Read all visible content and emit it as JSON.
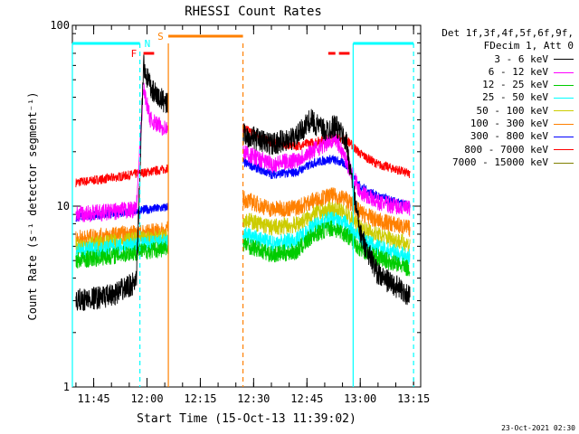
{
  "chart_data": {
    "type": "line",
    "title": "RHESSI Count Rates",
    "xlabel": "Start Time (15-Oct-13 11:39:02)",
    "ylabel": "Count Rate (s⁻¹ detector segment⁻¹)",
    "yscale": "log",
    "ylim": [
      1,
      100
    ],
    "y_ticks": [
      "1",
      "10",
      "100"
    ],
    "xlim": [
      "11:39",
      "13:17"
    ],
    "x_ticks": [
      "11:45",
      "12:00",
      "12:15",
      "12:30",
      "12:45",
      "13:00",
      "13:15"
    ],
    "footer": "23-Oct-2021 02:30",
    "legend_header": [
      "Det 1f,3f,4f,5f,6f,9f,",
      "FDecim 1, Att 0"
    ],
    "data_gap": [
      "12:06",
      "12:27"
    ],
    "series": [
      {
        "name": "3 - 6 keV",
        "color": "#000000",
        "times": [
          "11:40",
          "11:50",
          "11:57",
          "11:59",
          "12:01",
          "12:03",
          "12:05",
          "12:27",
          "12:35",
          "12:42",
          "12:46",
          "12:50",
          "12:53",
          "12:56",
          "13:00",
          "13:05",
          "13:10",
          "13:14"
        ],
        "values": [
          3.0,
          3.2,
          3.8,
          60,
          45,
          40,
          38,
          25,
          22,
          24,
          30,
          26,
          28,
          23,
          7,
          4.2,
          3.6,
          3.2
        ]
      },
      {
        "name": "6 - 12 keV",
        "color": "#ff00ff",
        "times": [
          "11:40",
          "11:50",
          "11:57",
          "11:59",
          "12:01",
          "12:03",
          "12:05",
          "12:27",
          "12:35",
          "12:42",
          "12:46",
          "12:50",
          "12:53",
          "12:56",
          "13:00",
          "13:05",
          "13:10",
          "13:14"
        ],
        "values": [
          9.0,
          9.3,
          9.6,
          45,
          30,
          28,
          27,
          20,
          17,
          18,
          20,
          22,
          24,
          18,
          12,
          10.5,
          10,
          9.6
        ]
      },
      {
        "name": "12 - 25 keV",
        "color": "#00cc00",
        "times": [
          "11:40",
          "11:50",
          "11:58",
          "12:05",
          "12:27",
          "12:35",
          "12:42",
          "12:47",
          "12:52",
          "12:56",
          "13:00",
          "13:05",
          "13:10",
          "13:14"
        ],
        "values": [
          5.0,
          5.3,
          5.6,
          5.8,
          6.2,
          5.4,
          5.6,
          7.0,
          7.6,
          7.0,
          5.8,
          5.2,
          4.8,
          4.5
        ]
      },
      {
        "name": "25 - 50 keV",
        "color": "#00ffff",
        "times": [
          "11:40",
          "11:50",
          "11:58",
          "12:05",
          "12:27",
          "12:35",
          "12:42",
          "12:47",
          "12:52",
          "12:56",
          "13:00",
          "13:05",
          "13:10",
          "13:14"
        ],
        "values": [
          5.6,
          5.9,
          6.1,
          6.3,
          7.0,
          6.2,
          6.5,
          7.8,
          8.5,
          8.0,
          6.6,
          5.9,
          5.5,
          5.2
        ]
      },
      {
        "name": "50 - 100 keV",
        "color": "#cccc00",
        "times": [
          "11:40",
          "11:50",
          "11:58",
          "12:05",
          "12:27",
          "12:35",
          "12:42",
          "12:47",
          "12:52",
          "12:56",
          "13:00",
          "13:05",
          "13:10",
          "13:14"
        ],
        "values": [
          6.0,
          6.3,
          6.5,
          6.7,
          8.5,
          7.6,
          7.9,
          9.0,
          9.6,
          9.1,
          7.6,
          6.9,
          6.5,
          6.1
        ]
      },
      {
        "name": "100 - 300 keV",
        "color": "#ff8000",
        "times": [
          "11:40",
          "11:50",
          "11:58",
          "12:05",
          "12:27",
          "12:35",
          "12:42",
          "12:47",
          "12:52",
          "12:56",
          "13:00",
          "13:05",
          "13:10",
          "13:14"
        ],
        "values": [
          6.6,
          6.9,
          7.1,
          7.3,
          11.0,
          9.6,
          9.8,
          10.8,
          11.4,
          11.0,
          9.2,
          8.3,
          7.9,
          7.5
        ]
      },
      {
        "name": "300 - 800 keV",
        "color": "#0000ff",
        "times": [
          "11:40",
          "11:50",
          "11:58",
          "12:05",
          "12:27",
          "12:35",
          "12:42",
          "12:47",
          "12:52",
          "12:56",
          "13:00",
          "13:05",
          "13:10",
          "13:14"
        ],
        "values": [
          8.7,
          9.1,
          9.5,
          9.8,
          17.5,
          15.0,
          15.4,
          17.4,
          18.2,
          17.0,
          12.8,
          11.3,
          10.5,
          10.0
        ]
      },
      {
        "name": "800 - 7000 keV",
        "color": "#ff0000",
        "times": [
          "11:40",
          "11:50",
          "11:58",
          "12:05",
          "12:27",
          "12:35",
          "12:42",
          "12:47",
          "12:52",
          "12:56",
          "13:00",
          "13:05",
          "13:10",
          "13:14"
        ],
        "values": [
          13.5,
          14.3,
          15.2,
          16.0,
          27.0,
          22.5,
          21.5,
          22.5,
          24.0,
          23.5,
          19.5,
          17.0,
          16.0,
          15.0
        ]
      },
      {
        "name": "7000 - 15000 keV",
        "color": "#808000",
        "times": [],
        "values": []
      }
    ],
    "markers": [
      {
        "label": "N",
        "color": "#00ffff",
        "start": "11:39",
        "end": "11:58"
      },
      {
        "label": "N",
        "color": "#00ffff",
        "start": "12:58",
        "end": "13:15"
      },
      {
        "label": "S",
        "color": "#ff8000",
        "start": "12:06",
        "end": "12:27"
      },
      {
        "label": "F",
        "color": "#ff0000",
        "start": "11:59",
        "end": "12:02"
      },
      {
        "label": "",
        "color": "#ff0000",
        "start": "12:51",
        "end": "12:53"
      },
      {
        "label": "",
        "color": "#ff0000",
        "start": "12:54",
        "end": "12:57"
      }
    ],
    "vlines": [
      {
        "time": "11:39",
        "color": "#00ffff",
        "style": "solid"
      },
      {
        "time": "11:58",
        "color": "#00ffff",
        "style": "dashed"
      },
      {
        "time": "12:06",
        "color": "#ff8000",
        "style": "solid"
      },
      {
        "time": "12:27",
        "color": "#ff8000",
        "style": "dashed"
      },
      {
        "time": "12:58",
        "color": "#00ffff",
        "style": "solid"
      },
      {
        "time": "13:15",
        "color": "#00ffff",
        "style": "dashed"
      }
    ]
  }
}
